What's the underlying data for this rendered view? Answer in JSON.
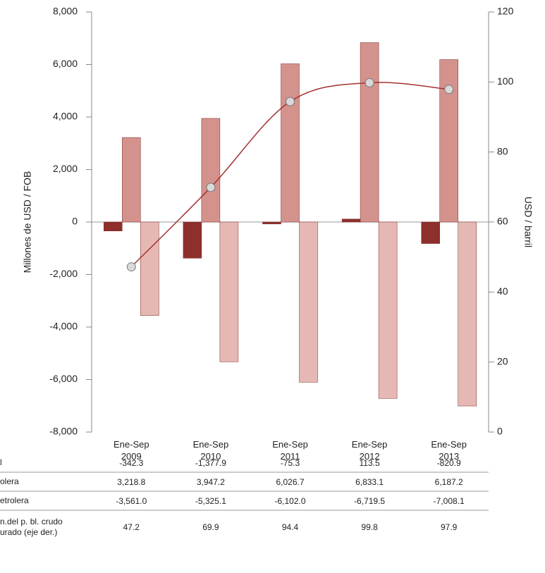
{
  "chart_data": {
    "type": "bar-line",
    "y_label": "Millones de USD / FOB",
    "y2_label": "USD / barril",
    "categories": [
      "Ene-Sep 2009",
      "Ene-Sep 2010",
      "Ene-Sep 2011",
      "Ene-Sep 2012",
      "Ene-Sep 2013"
    ],
    "ylim": [
      -8000,
      8000
    ],
    "yticks": [
      {
        "value": -8000,
        "label": "-8,000"
      },
      {
        "value": -6000,
        "label": "-6,000"
      },
      {
        "value": -4000,
        "label": "-4,000"
      },
      {
        "value": -2000,
        "label": "-2,000"
      },
      0,
      {
        "value": 2000,
        "label": "2,000"
      },
      {
        "value": 4000,
        "label": "4,000"
      },
      {
        "value": 6000,
        "label": "6,000"
      },
      {
        "value": 8000,
        "label": "8,000"
      }
    ],
    "y2lim": [
      0,
      120
    ],
    "y2ticks": [
      0,
      20,
      40,
      60,
      80,
      100,
      120
    ],
    "series": [
      {
        "name": "l",
        "color": "#8e2f2c",
        "values": [
          -342.3,
          -1377.9,
          -75.3,
          113.5,
          -820.9
        ],
        "value_labels": [
          "-342.3",
          "-1,377.9",
          "-75.3",
          "113.5",
          "-820.9"
        ]
      },
      {
        "name": "olera",
        "color": "#d4928c",
        "values": [
          3218.8,
          3947.2,
          6026.7,
          6833.1,
          6187.2
        ],
        "value_labels": [
          "3,218.8",
          "3,947.2",
          "6,026.7",
          "6,833.1",
          "6,187.2"
        ]
      },
      {
        "name": "etrolera",
        "color": "#e6b8b3",
        "values": [
          -3561.0,
          -5325.1,
          -6102.0,
          -6719.5,
          -7008.1
        ],
        "value_labels": [
          "-3,561.0",
          "-5,325.1",
          "-6,102.0",
          "-6,719.5",
          "-7,008.1"
        ]
      },
      {
        "name": "n.del p. bl. crudo urado (eje der.)",
        "color": "#a33330",
        "axis": "y2",
        "values": [
          47.2,
          69.9,
          94.4,
          99.8,
          97.9
        ],
        "value_labels": [
          "47.2",
          "69.9",
          "94.4",
          "99.8",
          "97.9"
        ]
      }
    ]
  }
}
